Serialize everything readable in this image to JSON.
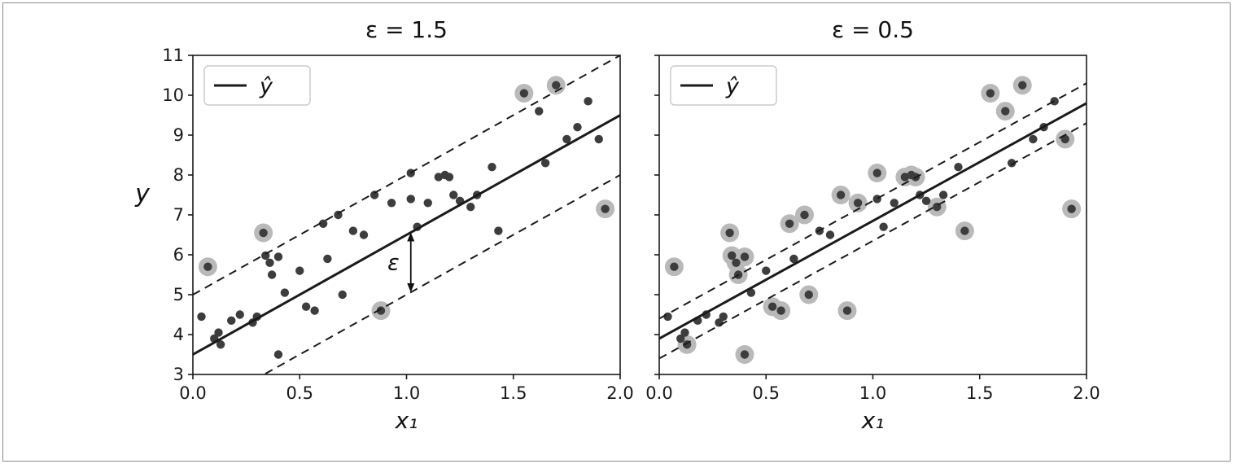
{
  "figure": {
    "background": "#ffffff",
    "border_color": "#8c8c8c"
  },
  "chart_data": [
    {
      "type": "scatter",
      "title": "ε = 1.5",
      "xlabel": "x₁",
      "ylabel": "y",
      "xlim": [
        0.0,
        2.0
      ],
      "ylim": [
        3,
        11
      ],
      "xticks": [
        "0.0",
        "0.5",
        "1.0",
        "1.5",
        "2.0"
      ],
      "xtick_values": [
        0.0,
        0.5,
        1.0,
        1.5,
        2.0
      ],
      "yticks": [
        "3",
        "4",
        "5",
        "6",
        "7",
        "8",
        "9",
        "10",
        "11"
      ],
      "ytick_values": [
        3,
        4,
        5,
        6,
        7,
        8,
        9,
        10,
        11
      ],
      "show_ytick_labels": true,
      "legend": {
        "label": "ŷ",
        "position": "upper-left"
      },
      "epsilon": 1.5,
      "regression_line": {
        "intercept": 3.5,
        "slope": 3.0
      },
      "margin_style": "dashed",
      "annotation": {
        "label": "ε",
        "x": 1.02
      },
      "colors": {
        "point": "#3d3d3d",
        "support_vector_halo": "#b9b9b9",
        "line": "#1a1a1a"
      },
      "points": [
        [
          0.04,
          4.45
        ],
        [
          0.07,
          5.7
        ],
        [
          0.1,
          3.9
        ],
        [
          0.12,
          4.05
        ],
        [
          0.13,
          3.75
        ],
        [
          0.18,
          4.35
        ],
        [
          0.22,
          4.5
        ],
        [
          0.28,
          4.3
        ],
        [
          0.3,
          4.45
        ],
        [
          0.33,
          6.55
        ],
        [
          0.34,
          5.98
        ],
        [
          0.36,
          5.8
        ],
        [
          0.37,
          5.5
        ],
        [
          0.4,
          5.95
        ],
        [
          0.4,
          3.5
        ],
        [
          0.43,
          5.05
        ],
        [
          0.5,
          5.6
        ],
        [
          0.53,
          4.7
        ],
        [
          0.57,
          4.6
        ],
        [
          0.61,
          6.78
        ],
        [
          0.63,
          5.9
        ],
        [
          0.68,
          7.0
        ],
        [
          0.7,
          5.0
        ],
        [
          0.75,
          6.6
        ],
        [
          0.8,
          6.5
        ],
        [
          0.85,
          7.5
        ],
        [
          0.88,
          4.6
        ],
        [
          0.93,
          7.3
        ],
        [
          1.02,
          8.05
        ],
        [
          1.02,
          7.4
        ],
        [
          1.05,
          6.7
        ],
        [
          1.1,
          7.3
        ],
        [
          1.15,
          7.95
        ],
        [
          1.18,
          8.0
        ],
        [
          1.2,
          7.95
        ],
        [
          1.22,
          7.5
        ],
        [
          1.25,
          7.35
        ],
        [
          1.3,
          7.2
        ],
        [
          1.33,
          7.5
        ],
        [
          1.4,
          8.2
        ],
        [
          1.43,
          6.6
        ],
        [
          1.55,
          10.05
        ],
        [
          1.62,
          9.6
        ],
        [
          1.65,
          8.3
        ],
        [
          1.7,
          10.25
        ],
        [
          1.75,
          8.9
        ],
        [
          1.8,
          9.2
        ],
        [
          1.85,
          9.85
        ],
        [
          1.9,
          8.9
        ],
        [
          1.93,
          7.15
        ]
      ]
    },
    {
      "type": "scatter",
      "title": "ε = 0.5",
      "xlabel": "x₁",
      "ylabel": "",
      "xlim": [
        0.0,
        2.0
      ],
      "ylim": [
        3,
        11
      ],
      "xticks": [
        "0.0",
        "0.5",
        "1.0",
        "1.5",
        "2.0"
      ],
      "xtick_values": [
        0.0,
        0.5,
        1.0,
        1.5,
        2.0
      ],
      "yticks": [
        "3",
        "4",
        "5",
        "6",
        "7",
        "8",
        "9",
        "10",
        "11"
      ],
      "ytick_values": [
        3,
        4,
        5,
        6,
        7,
        8,
        9,
        10,
        11
      ],
      "show_ytick_labels": false,
      "legend": {
        "label": "ŷ",
        "position": "upper-left"
      },
      "epsilon": 0.5,
      "regression_line": {
        "intercept": 3.9,
        "slope": 2.95
      },
      "margin_style": "dashed",
      "annotation": null,
      "colors": {
        "point": "#3d3d3d",
        "support_vector_halo": "#b9b9b9",
        "line": "#1a1a1a"
      },
      "points": [
        [
          0.04,
          4.45
        ],
        [
          0.07,
          5.7
        ],
        [
          0.1,
          3.9
        ],
        [
          0.12,
          4.05
        ],
        [
          0.13,
          3.75
        ],
        [
          0.18,
          4.35
        ],
        [
          0.22,
          4.5
        ],
        [
          0.28,
          4.3
        ],
        [
          0.3,
          4.45
        ],
        [
          0.33,
          6.55
        ],
        [
          0.34,
          5.98
        ],
        [
          0.36,
          5.8
        ],
        [
          0.37,
          5.5
        ],
        [
          0.4,
          5.95
        ],
        [
          0.4,
          3.5
        ],
        [
          0.43,
          5.05
        ],
        [
          0.5,
          5.6
        ],
        [
          0.53,
          4.7
        ],
        [
          0.57,
          4.6
        ],
        [
          0.61,
          6.78
        ],
        [
          0.63,
          5.9
        ],
        [
          0.68,
          7.0
        ],
        [
          0.7,
          5.0
        ],
        [
          0.75,
          6.6
        ],
        [
          0.8,
          6.5
        ],
        [
          0.85,
          7.5
        ],
        [
          0.88,
          4.6
        ],
        [
          0.93,
          7.3
        ],
        [
          1.02,
          8.05
        ],
        [
          1.02,
          7.4
        ],
        [
          1.05,
          6.7
        ],
        [
          1.1,
          7.3
        ],
        [
          1.15,
          7.95
        ],
        [
          1.18,
          8.0
        ],
        [
          1.2,
          7.95
        ],
        [
          1.22,
          7.5
        ],
        [
          1.25,
          7.35
        ],
        [
          1.3,
          7.2
        ],
        [
          1.33,
          7.5
        ],
        [
          1.4,
          8.2
        ],
        [
          1.43,
          6.6
        ],
        [
          1.55,
          10.05
        ],
        [
          1.62,
          9.6
        ],
        [
          1.65,
          8.3
        ],
        [
          1.7,
          10.25
        ],
        [
          1.75,
          8.9
        ],
        [
          1.8,
          9.2
        ],
        [
          1.85,
          9.85
        ],
        [
          1.9,
          8.9
        ],
        [
          1.93,
          7.15
        ]
      ]
    }
  ]
}
